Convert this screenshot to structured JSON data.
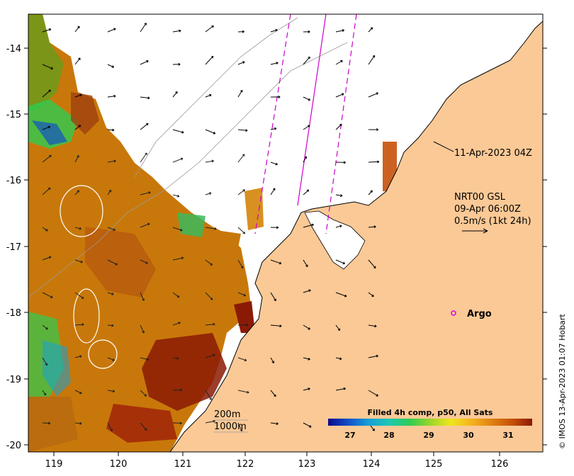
{
  "map": {
    "x_ticks": [
      "119",
      "120",
      "121",
      "122",
      "123",
      "124",
      "125",
      "126"
    ],
    "y_ticks": [
      "-14",
      "-15",
      "-16",
      "-17",
      "-18",
      "-19",
      "-20"
    ],
    "pass_label": "11-Apr-2023 04Z",
    "current_product": "NRT00 GSL",
    "current_time": "09-Apr 06:00Z",
    "scale_label": "0.5m/s (1kt 24h)",
    "float_label": "Argo",
    "isobath_200": "200m",
    "isobath_1000": "1000m",
    "credit": "© IMOS 13-Apr-2023 01:07 Hobart",
    "colors": {
      "land": "#fbc996",
      "sst_warm": "#c8780a",
      "sst_hot": "#8b1a05",
      "sst_mid": "#e7a826",
      "sst_cool": "#3bb85a",
      "track": "#cc00cc",
      "argo": "#e000e0"
    }
  },
  "colorbar": {
    "title": "Filled 4h comp, p50, All Sats",
    "ticks": [
      "27",
      "28",
      "29",
      "30",
      "31"
    ],
    "stops": [
      "#0a0a8c",
      "#1450c8",
      "#17a0d6",
      "#1fc8b4",
      "#2ecc50",
      "#9ad62a",
      "#f0e61e",
      "#f5b41e",
      "#e08214",
      "#c8500a",
      "#8b1a05"
    ]
  }
}
